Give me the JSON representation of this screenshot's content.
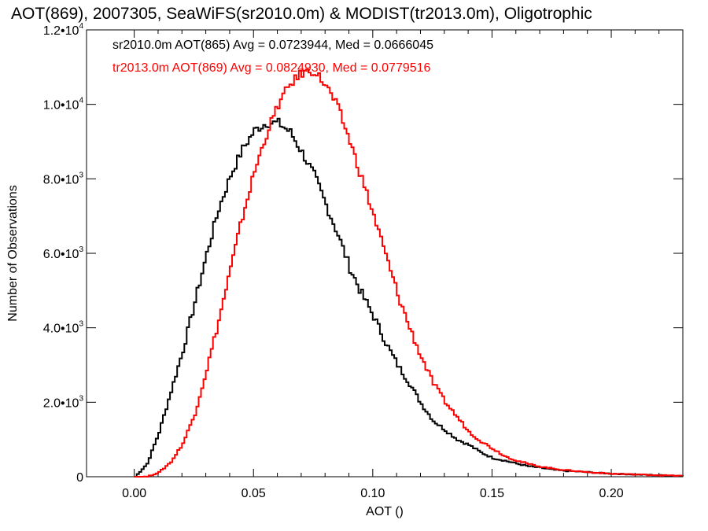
{
  "chart_data": {
    "type": "line",
    "title": "AOT(869), 2007305, SeaWiFS(sr2010.0m) & MODIST(tr2013.0m), Oligotrophic",
    "xlabel": "AOT ()",
    "ylabel": "Number of Observations",
    "xlim": [
      -0.02,
      0.23
    ],
    "ylim": [
      0,
      12000
    ],
    "x_ticks": [
      {
        "value": 0.0,
        "label": "0.00"
      },
      {
        "value": 0.05,
        "label": "0.05"
      },
      {
        "value": 0.1,
        "label": "0.10"
      },
      {
        "value": 0.15,
        "label": "0.15"
      },
      {
        "value": 0.2,
        "label": "0.20"
      }
    ],
    "y_ticks": [
      {
        "value": 0,
        "mant": "0",
        "exp": ""
      },
      {
        "value": 2000,
        "mant": "2.0•10",
        "exp": "3"
      },
      {
        "value": 4000,
        "mant": "4.0•10",
        "exp": "3"
      },
      {
        "value": 6000,
        "mant": "6.0•10",
        "exp": "3"
      },
      {
        "value": 8000,
        "mant": "8.0•10",
        "exp": "3"
      },
      {
        "value": 10000,
        "mant": "1.0•10",
        "exp": "4"
      },
      {
        "value": 12000,
        "mant": "1.2•10",
        "exp": "4"
      }
    ],
    "grid": false,
    "series": [
      {
        "name": "sr2010.0m AOT(865) Avg = 0.0723944, Med = 0.0666045",
        "color": "#000000",
        "x": [
          0.0,
          0.005,
          0.01,
          0.015,
          0.02,
          0.025,
          0.03,
          0.035,
          0.04,
          0.045,
          0.05,
          0.055,
          0.06,
          0.065,
          0.07,
          0.075,
          0.08,
          0.085,
          0.09,
          0.095,
          0.1,
          0.105,
          0.11,
          0.115,
          0.12,
          0.125,
          0.13,
          0.135,
          0.14,
          0.145,
          0.15,
          0.155,
          0.16,
          0.165,
          0.17,
          0.175,
          0.18,
          0.185,
          0.19,
          0.195,
          0.2,
          0.205,
          0.21,
          0.215,
          0.22,
          0.225,
          0.23
        ],
        "y": [
          0,
          350,
          1200,
          2300,
          3400,
          4700,
          6000,
          7200,
          8100,
          8800,
          9300,
          9500,
          9500,
          9250,
          8700,
          8100,
          7300,
          6500,
          5600,
          4900,
          4300,
          3600,
          3000,
          2500,
          1950,
          1500,
          1250,
          1000,
          850,
          650,
          500,
          430,
          350,
          280,
          240,
          190,
          160,
          140,
          120,
          100,
          80,
          70,
          60,
          50,
          40,
          30,
          25
        ]
      },
      {
        "name": "tr2013.0m AOT(869) Avg = 0.0824930, Med = 0.0779516",
        "color": "#ff0000",
        "x": [
          0.0,
          0.005,
          0.01,
          0.015,
          0.02,
          0.025,
          0.03,
          0.035,
          0.04,
          0.045,
          0.05,
          0.055,
          0.06,
          0.065,
          0.07,
          0.075,
          0.08,
          0.085,
          0.09,
          0.095,
          0.1,
          0.105,
          0.11,
          0.115,
          0.12,
          0.125,
          0.13,
          0.135,
          0.14,
          0.145,
          0.15,
          0.155,
          0.16,
          0.165,
          0.17,
          0.175,
          0.18,
          0.185,
          0.19,
          0.195,
          0.2,
          0.205,
          0.21,
          0.215,
          0.22,
          0.225,
          0.23
        ],
        "y": [
          0,
          0,
          120,
          400,
          900,
          1700,
          2900,
          4200,
          5600,
          7000,
          8200,
          9200,
          10000,
          10550,
          10850,
          10900,
          10500,
          9900,
          9000,
          8000,
          7000,
          5950,
          4900,
          4000,
          3200,
          2500,
          2000,
          1600,
          1200,
          950,
          750,
          550,
          430,
          340,
          270,
          220,
          180,
          150,
          120,
          100,
          80,
          70,
          60,
          50,
          40,
          30,
          25
        ]
      }
    ]
  }
}
